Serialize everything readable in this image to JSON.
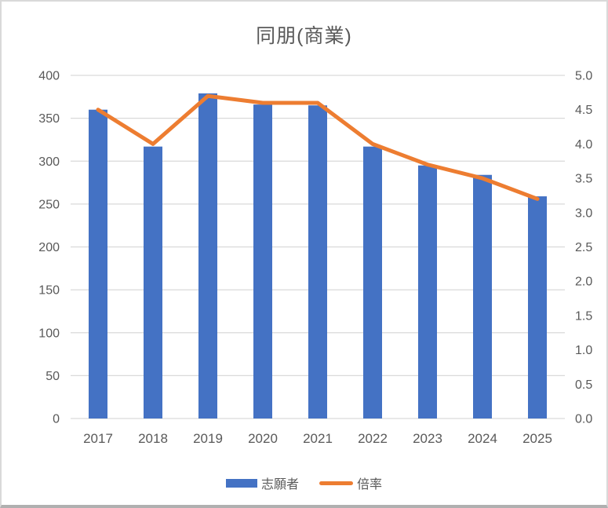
{
  "frame": {
    "background": "#ffffff",
    "border_color": "#d9d9d9",
    "bottom_edge_color": "#b0b0b0"
  },
  "chart_data": {
    "type": "combo-bar-line",
    "title": "同朋(商業)",
    "categories": [
      "2017",
      "2018",
      "2019",
      "2020",
      "2021",
      "2022",
      "2023",
      "2024",
      "2025"
    ],
    "series": [
      {
        "name": "志願者",
        "type": "bar",
        "axis": "left",
        "color": "#4472C4",
        "values": [
          360,
          317,
          379,
          366,
          365,
          317,
          295,
          284,
          259
        ]
      },
      {
        "name": "倍率",
        "type": "line",
        "axis": "right",
        "color": "#ED7D31",
        "values": [
          4.5,
          4.0,
          4.7,
          4.6,
          4.6,
          4.0,
          3.7,
          3.5,
          3.2
        ]
      }
    ],
    "left_axis": {
      "min": 0,
      "max": 400,
      "step": 50,
      "ticks": [
        "400",
        "350",
        "300",
        "250",
        "200",
        "150",
        "100",
        "50",
        "0"
      ]
    },
    "right_axis": {
      "min": 0.0,
      "max": 5.0,
      "step": 0.5,
      "ticks": [
        "5.0",
        "4.5",
        "4.0",
        "3.5",
        "3.0",
        "2.5",
        "2.0",
        "1.5",
        "1.0",
        "0.5",
        "0.0"
      ]
    },
    "grid": true,
    "grid_color": "#d9d9d9",
    "text_color": "#595959",
    "legend_position": "bottom"
  },
  "legend": {
    "items": [
      {
        "label": "志願者",
        "swatch": "bar",
        "color": "#4472C4"
      },
      {
        "label": "倍率",
        "swatch": "line",
        "color": "#ED7D31"
      }
    ]
  }
}
